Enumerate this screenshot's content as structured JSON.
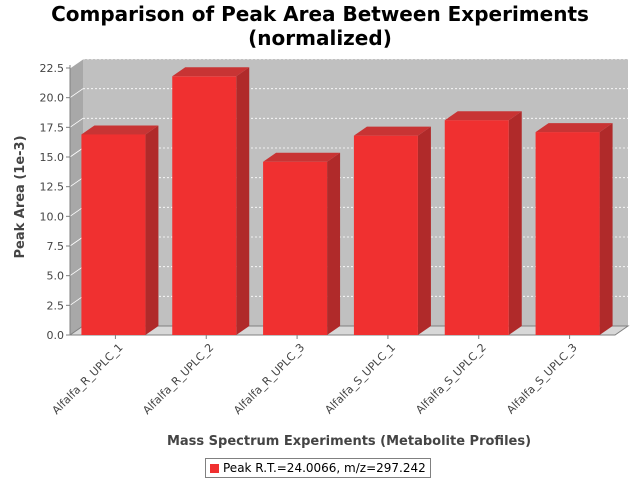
{
  "chart_data": {
    "type": "bar",
    "title_line1": "Comparison of Peak Area Between Experiments",
    "title_line2": "(normalized)",
    "xlabel": "Mass Spectrum Experiments (Metabolite Profiles)",
    "ylabel": "Peak Area (1e-3)",
    "categories": [
      "Alfalfa_R_UPLC_1",
      "Alfalfa_R_UPLC_2",
      "Alfalfa_R_UPLC_3",
      "Alfalfa_S_UPLC_1",
      "Alfalfa_S_UPLC_2",
      "Alfalfa_S_UPLC_3"
    ],
    "series": [
      {
        "name": "Peak R.T.=24.0066, m/z=297.242",
        "values": [
          16.9,
          21.8,
          14.6,
          16.8,
          18.1,
          17.1
        ],
        "color": "#f03030"
      }
    ],
    "ylim": [
      0,
      22.5
    ],
    "yticks": [
      "0.0",
      "2.5",
      "5.0",
      "7.5",
      "10.0",
      "12.5",
      "15.0",
      "17.5",
      "20.0",
      "22.5"
    ],
    "grid": true,
    "legend_position": "bottom",
    "plot_background": "#c0c0c0"
  }
}
